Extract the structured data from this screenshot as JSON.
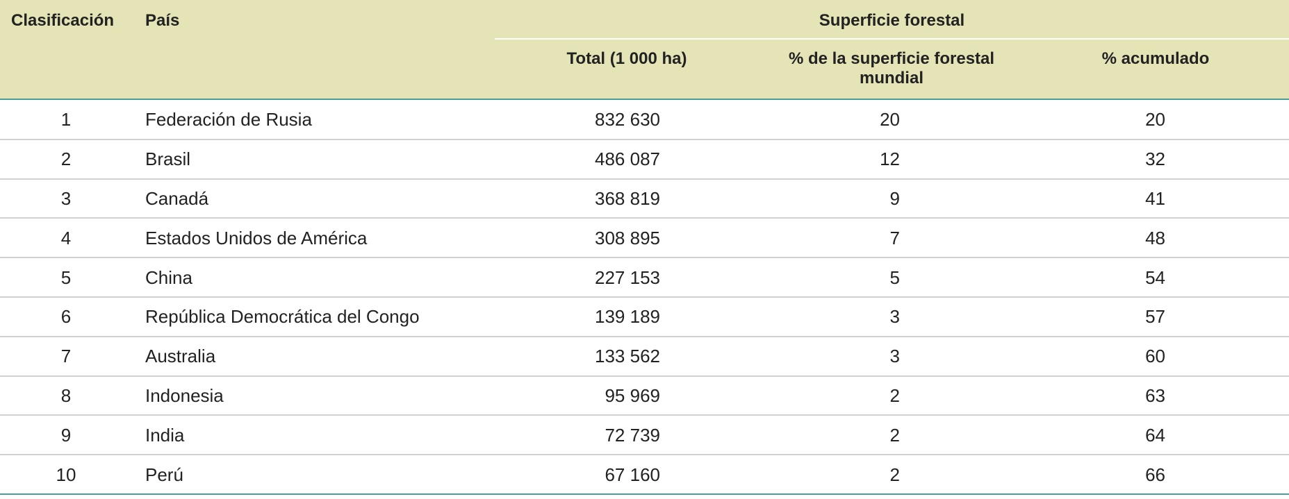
{
  "header": {
    "rank": "Clasificación",
    "country": "País",
    "group": "Superficie forestal",
    "columns": [
      "Total (1 000 ha)",
      "% de la superficie forestal mundial",
      "% acumulado"
    ]
  },
  "table": {
    "rows": [
      [
        "1",
        "Federación de Rusia",
        "832 630",
        "20",
        "20"
      ],
      [
        "2",
        "Brasil",
        "486 087",
        "12",
        "32"
      ],
      [
        "3",
        "Canadá",
        "368 819",
        "9",
        "41"
      ],
      [
        "4",
        "Estados Unidos de América",
        "308 895",
        "7",
        "48"
      ],
      [
        "5",
        "China",
        "227 153",
        "5",
        "54"
      ],
      [
        "6",
        "República Democrática del Congo",
        "139 189",
        "3",
        "57"
      ],
      [
        "7",
        "Australia",
        "133 562",
        "3",
        "60"
      ],
      [
        "8",
        "Indonesia",
        "95 969",
        "2",
        "63"
      ],
      [
        "9",
        "India",
        "72 739",
        "2",
        "64"
      ],
      [
        "10",
        "Perú",
        "67 160",
        "2",
        "66"
      ]
    ]
  }
}
